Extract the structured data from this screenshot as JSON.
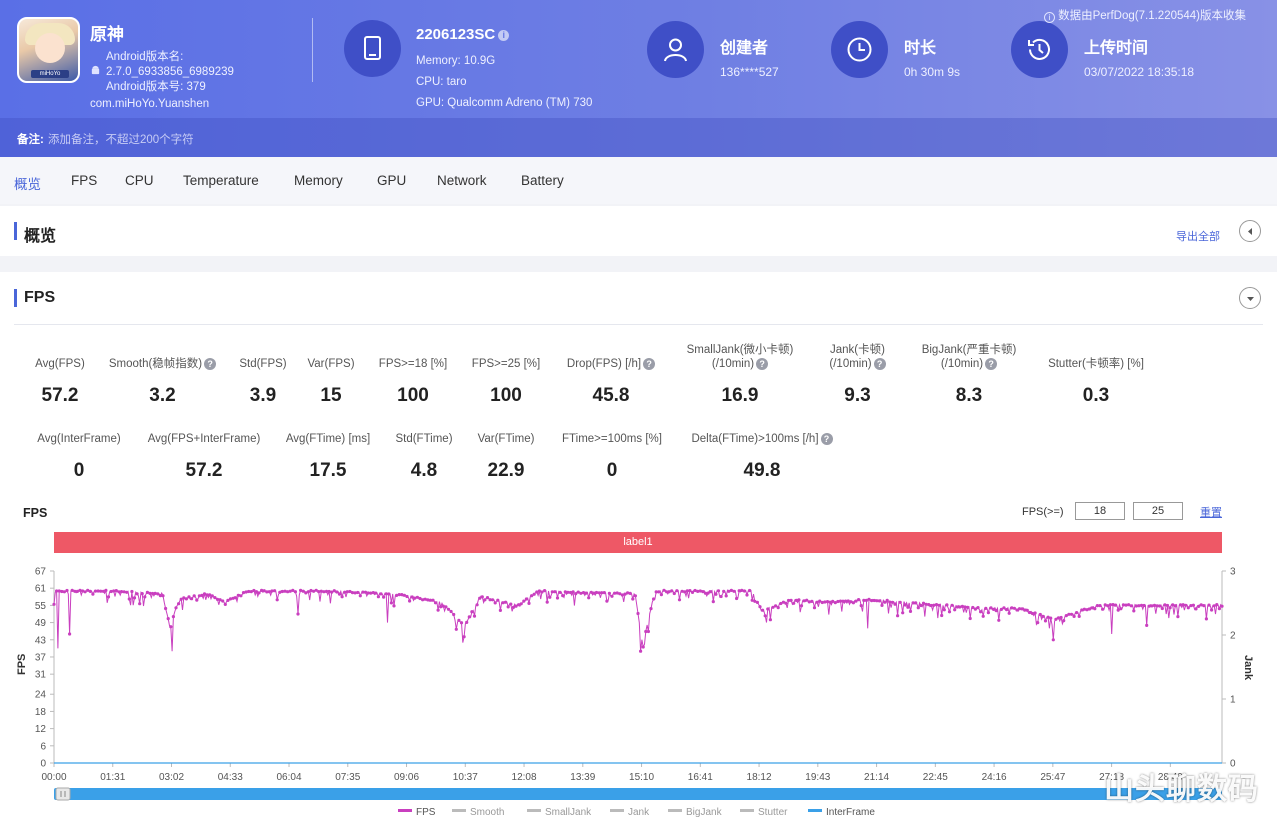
{
  "app": {
    "name": "原神",
    "android_version_label": "Android版本名:",
    "android_version_name": "2.7.0_6933856_6989239",
    "android_version_code": "Android版本号: 379",
    "package": "com.miHoYo.Yuanshen",
    "icon_tag": "miHoYo"
  },
  "device": {
    "model": "2206123SC",
    "memory": "Memory: 10.9G",
    "cpu": "CPU: taro",
    "gpu": "GPU: Qualcomm Adreno (TM) 730"
  },
  "creator": {
    "label": "创建者",
    "value": "136****527"
  },
  "duration": {
    "label": "时长",
    "value": "0h 30m 9s"
  },
  "upload": {
    "label": "上传时间",
    "value": "03/07/2022 18:35:18"
  },
  "perfdog_note": "数据由PerfDog(7.1.220544)版本收集",
  "note": {
    "label": "备注:",
    "placeholder": "添加备注，不超过200个字符"
  },
  "tabs": [
    "概览",
    "FPS",
    "CPU",
    "Temperature",
    "Memory",
    "GPU",
    "Network",
    "Battery"
  ],
  "overview": {
    "title": "概览",
    "export": "导出全部"
  },
  "fps_section": {
    "title": "FPS"
  },
  "metrics_row1": [
    {
      "label": "Avg(FPS)",
      "value": "57.2"
    },
    {
      "label": "Smooth(稳帧指数)",
      "value": "3.2"
    },
    {
      "label": "Std(FPS)",
      "value": "3.9"
    },
    {
      "label": "Var(FPS)",
      "value": "15"
    },
    {
      "label": "FPS>=18 [%]",
      "value": "100"
    },
    {
      "label": "FPS>=25 [%]",
      "value": "100"
    },
    {
      "label": "Drop(FPS) [/h]",
      "value": "45.8"
    },
    {
      "label": "SmallJank(微小卡顿)",
      "label2": "(/10min)",
      "value": "16.9"
    },
    {
      "label": "Jank(卡顿)",
      "label2": "(/10min)",
      "value": "9.3"
    },
    {
      "label": "BigJank(严重卡顿)",
      "label2": "(/10min)",
      "value": "8.3"
    },
    {
      "label": "Stutter(卡顿率) [%]",
      "value": "0.3"
    }
  ],
  "metrics_row2": [
    {
      "label": "Avg(InterFrame)",
      "value": "0"
    },
    {
      "label": "Avg(FPS+InterFrame)",
      "value": "57.2"
    },
    {
      "label": "Avg(FTime) [ms]",
      "value": "17.5"
    },
    {
      "label": "Std(FTime)",
      "value": "4.8"
    },
    {
      "label": "Var(FTime)",
      "value": "22.9"
    },
    {
      "label": "FTime>=100ms [%]",
      "value": "0"
    },
    {
      "label": "Delta(FTime)>100ms [/h]",
      "value": "49.8"
    }
  ],
  "chart_controls": {
    "title": "FPS",
    "threshold_label": "FPS(>=)",
    "threshold1": "18",
    "threshold2": "25",
    "reset": "重置",
    "label_bar": "label1"
  },
  "chart_data": {
    "type": "line",
    "ylabel": "FPS",
    "y2label": "Jank",
    "ylim": [
      0,
      67
    ],
    "y_ticks": [
      "67",
      "61",
      "55",
      "49",
      "43",
      "37",
      "31",
      "24",
      "18",
      "12",
      "6",
      "0"
    ],
    "y2lim": [
      0,
      3
    ],
    "y2_ticks": [
      "3",
      "2",
      "1",
      "0"
    ],
    "x_ticks": [
      "00:00",
      "01:31",
      "03:02",
      "04:33",
      "06:04",
      "07:35",
      "09:06",
      "10:37",
      "12:08",
      "13:39",
      "15:10",
      "16:41",
      "18:12",
      "19:43",
      "21:14",
      "22:45",
      "24:16",
      "25:47",
      "27:18",
      "28:49"
    ],
    "series": [
      {
        "name": "FPS",
        "color": "#c93fbf"
      },
      {
        "name": "Smooth",
        "color": "#bbbbbb"
      },
      {
        "name": "SmallJank",
        "color": "#bbbbbb"
      },
      {
        "name": "Jank",
        "color": "#bbbbbb"
      },
      {
        "name": "BigJank",
        "color": "#bbbbbb"
      },
      {
        "name": "Stutter",
        "color": "#bbbbbb"
      },
      {
        "name": "InterFrame",
        "color": "#3aa0e8"
      }
    ],
    "fps_profile": [
      [
        0,
        60
      ],
      [
        1.5,
        60
      ],
      [
        2.8,
        59
      ],
      [
        3.0,
        47
      ],
      [
        3.2,
        57
      ],
      [
        4.0,
        59
      ],
      [
        4.4,
        56
      ],
      [
        5.0,
        60
      ],
      [
        7.0,
        60
      ],
      [
        8.8,
        59
      ],
      [
        10.0,
        56
      ],
      [
        10.6,
        48
      ],
      [
        11.0,
        58
      ],
      [
        12.0,
        55
      ],
      [
        12.5,
        60
      ],
      [
        15.0,
        59
      ],
      [
        15.2,
        41
      ],
      [
        15.5,
        60
      ],
      [
        18.0,
        60
      ],
      [
        18.3,
        53
      ],
      [
        19.0,
        57
      ],
      [
        20.0,
        56
      ],
      [
        21.0,
        57
      ],
      [
        22.0,
        56
      ],
      [
        23.0,
        55
      ],
      [
        24.0,
        54
      ],
      [
        25.0,
        54
      ],
      [
        25.8,
        50
      ],
      [
        26.5,
        53
      ],
      [
        27.0,
        55
      ],
      [
        28.5,
        55
      ],
      [
        30.15,
        55
      ]
    ],
    "fps_dips": [
      [
        0.1,
        40
      ],
      [
        0.4,
        45
      ],
      [
        3.05,
        39
      ],
      [
        6.3,
        52
      ],
      [
        8.6,
        49
      ],
      [
        10.55,
        42
      ],
      [
        15.15,
        39
      ],
      [
        18.5,
        50
      ],
      [
        21.0,
        47
      ],
      [
        25.8,
        43
      ],
      [
        27.3,
        45
      ],
      [
        28.2,
        48
      ]
    ],
    "x_max_minutes": 30.15,
    "watermark": "山头聊数码"
  }
}
